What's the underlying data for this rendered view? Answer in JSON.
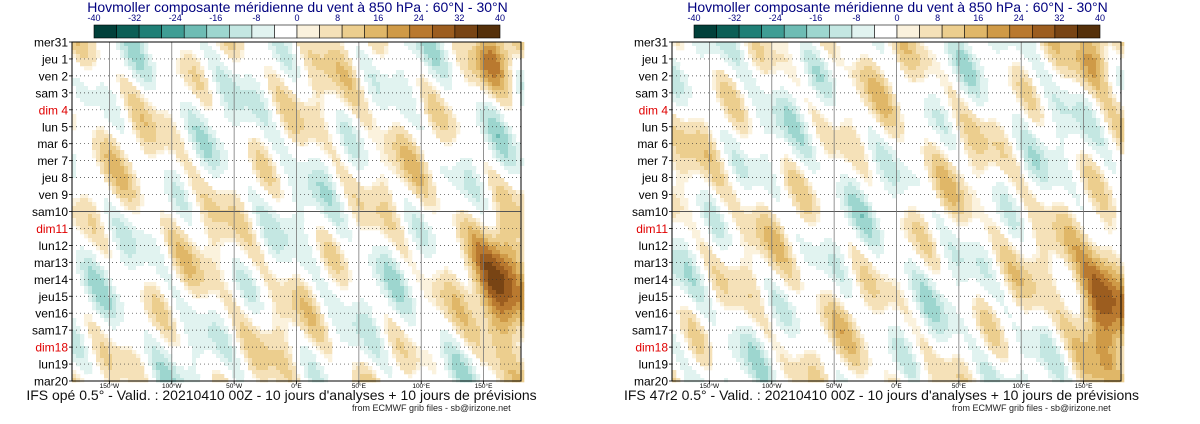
{
  "chart_data": [
    {
      "type": "heatmap",
      "title": "Hovmoller composante méridienne du vent à 850 hPa : 60°N - 30°N",
      "subtitle": "IFS opé 0.5° - Valid. : 20210410 00Z - 10 jours d'analyses + 10 jours de prévisions",
      "credit": "from ECMWF grib files - sb@irizone.net",
      "analysis_date_label": "sam10",
      "y_labels": [
        "mer31",
        "jeu 1",
        "ven 2",
        "sam 3",
        "dim 4",
        "lun 5",
        "mar 6",
        "mer 7",
        "jeu 8",
        "ven 9",
        "sam10",
        "dim11",
        "lun12",
        "mar13",
        "mer14",
        "jeu15",
        "ven16",
        "sam17",
        "dim18",
        "lun19",
        "mar20"
      ],
      "sundays": [
        "dim 4",
        "dim11",
        "dim18"
      ],
      "x_labels": [
        "150°W",
        "100°W",
        "50°W",
        "0°E",
        "50°E",
        "100°E",
        "150°E"
      ],
      "x_values": [
        -150,
        -100,
        -50,
        0,
        50,
        100,
        150
      ],
      "xlim": [
        -180,
        180
      ],
      "colorbar_ticks": [
        -40,
        -32,
        -24,
        -16,
        -8,
        0,
        8,
        16,
        24,
        32,
        40
      ],
      "colorbar_colors": [
        "#01403a",
        "#0c5f56",
        "#1f7f76",
        "#3f9d94",
        "#6ebcb4",
        "#9dd6cf",
        "#c4e7e2",
        "#e1f3f0",
        "#ffffff",
        "#fbf2dd",
        "#f5e1b8",
        "#ecce8e",
        "#e0b768",
        "#cf9a47",
        "#b9792f",
        "#9c5d1f",
        "#784414",
        "#55300a"
      ],
      "field_seed": 1
    },
    {
      "type": "heatmap",
      "title": "Hovmoller composante méridienne du vent à 850 hPa : 60°N - 30°N",
      "subtitle": "IFS 47r2 0.5° - Valid. : 20210410 00Z - 10 jours d'analyses + 10 jours de prévisions",
      "credit": "from ECMWF grib files - sb@irizone.net",
      "analysis_date_label": "sam10",
      "y_labels": [
        "mer31",
        "jeu 1",
        "ven 2",
        "sam 3",
        "dim 4",
        "lun 5",
        "mar 6",
        "mer 7",
        "jeu 8",
        "ven 9",
        "sam10",
        "dim11",
        "lun12",
        "mar13",
        "mer14",
        "jeu15",
        "ven16",
        "sam17",
        "dim18",
        "lun19",
        "mar20"
      ],
      "sundays": [
        "dim 4",
        "dim11",
        "dim18"
      ],
      "x_labels": [
        "150°W",
        "100°W",
        "50°W",
        "0°E",
        "50°E",
        "100°E",
        "150°E"
      ],
      "x_values": [
        -150,
        -100,
        -50,
        0,
        50,
        100,
        150
      ],
      "xlim": [
        -180,
        180
      ],
      "colorbar_ticks": [
        -40,
        -32,
        -24,
        -16,
        -8,
        0,
        8,
        16,
        24,
        32,
        40
      ],
      "colorbar_colors": [
        "#01403a",
        "#0c5f56",
        "#1f7f76",
        "#3f9d94",
        "#6ebcb4",
        "#9dd6cf",
        "#c4e7e2",
        "#e1f3f0",
        "#ffffff",
        "#fbf2dd",
        "#f5e1b8",
        "#ecce8e",
        "#e0b768",
        "#cf9a47",
        "#b9792f",
        "#9c5d1f",
        "#784414",
        "#55300a"
      ],
      "field_seed": 2
    }
  ]
}
